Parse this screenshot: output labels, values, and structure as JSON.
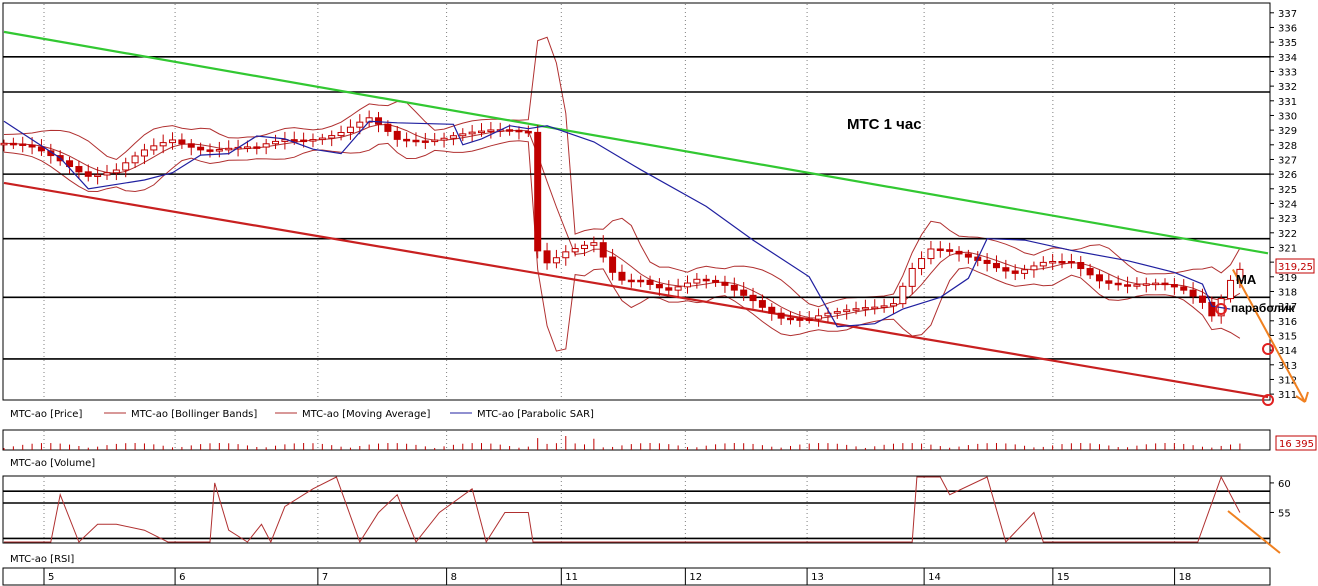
{
  "chart_data": [
    {
      "type": "candlestick",
      "panel": "price",
      "legend": [
        "MTC-ao [Price]",
        "MTC-ao [Bollinger Bands]",
        "MTC-ao [Moving Average]",
        "MTC-ao [Parabolic SAR]"
      ],
      "y_ticks": [
        311,
        312,
        313,
        314,
        315,
        316,
        317,
        318,
        319,
        320,
        321,
        322,
        323,
        324,
        325,
        326,
        327,
        328,
        329,
        330,
        331,
        332,
        333,
        334,
        335,
        336,
        337
      ],
      "ylim": [
        310.6,
        337.6
      ],
      "last_price_label": "319,25",
      "last_price": 319.25,
      "x_day_labels": [
        "5",
        "6",
        "7",
        "8",
        "11",
        "12",
        "13",
        "14",
        "15",
        "18"
      ],
      "horizontal_levels": [
        334,
        331.6,
        326,
        321.6,
        317.6,
        313.4
      ],
      "annotations": {
        "title": "МТС   1 час",
        "ma_label": "МА",
        "sar_label": "параболик"
      },
      "price_path": [
        [
          0,
          328.1
        ],
        [
          12,
          327.6
        ],
        [
          24,
          326.9
        ],
        [
          36,
          326.1
        ],
        [
          48,
          326.3
        ],
        [
          60,
          327.4
        ],
        [
          72,
          328.3
        ],
        [
          84,
          327.9
        ],
        [
          96,
          327.8
        ],
        [
          108,
          327.6
        ],
        [
          120,
          328.3
        ],
        [
          132,
          328.6
        ],
        [
          144,
          328.9
        ],
        [
          156,
          329.6
        ],
        [
          168,
          328.3
        ],
        [
          180,
          328.5
        ],
        [
          192,
          328.7
        ],
        [
          204,
          328.7
        ],
        [
          216,
          328.9
        ],
        [
          224,
          329.0
        ],
        [
          228,
          321.0
        ],
        [
          232,
          320.2
        ],
        [
          240,
          320.8
        ],
        [
          252,
          321.1
        ],
        [
          262,
          318.6
        ],
        [
          272,
          318.9
        ],
        [
          284,
          318.3
        ],
        [
          296,
          318.7
        ],
        [
          308,
          318.2
        ],
        [
          320,
          317.5
        ],
        [
          332,
          316.4
        ],
        [
          344,
          316.0
        ],
        [
          356,
          316.4
        ],
        [
          368,
          317.0
        ],
        [
          380,
          317.4
        ],
        [
          388,
          319.6
        ],
        [
          396,
          320.7
        ],
        [
          408,
          320.4
        ],
        [
          420,
          320.1
        ],
        [
          432,
          319.4
        ],
        [
          444,
          319.8
        ],
        [
          456,
          319.8
        ],
        [
          468,
          318.9
        ],
        [
          480,
          318.6
        ],
        [
          492,
          318.4
        ],
        [
          504,
          317.9
        ],
        [
          512,
          317.3
        ],
        [
          516,
          316.5
        ],
        [
          524,
          319.0
        ],
        [
          528,
          319.7
        ]
      ],
      "parabolic_sar": [
        [
          0,
          329.6
        ],
        [
          24,
          327.1
        ],
        [
          36,
          325.0
        ],
        [
          60,
          325.6
        ],
        [
          72,
          326.1
        ],
        [
          84,
          327.3
        ],
        [
          96,
          327.4
        ],
        [
          108,
          328.6
        ],
        [
          120,
          328.4
        ],
        [
          132,
          327.7
        ],
        [
          144,
          327.4
        ],
        [
          156,
          329.6
        ],
        [
          168,
          329.5
        ],
        [
          192,
          329.4
        ],
        [
          196,
          328.0
        ],
        [
          204,
          328.4
        ],
        [
          216,
          329.3
        ],
        [
          224,
          329.1
        ],
        [
          232,
          329.3
        ],
        [
          252,
          328.2
        ],
        [
          272,
          326.3
        ],
        [
          300,
          323.8
        ],
        [
          320,
          321.5
        ],
        [
          344,
          319.0
        ],
        [
          356,
          315.6
        ],
        [
          372,
          315.8
        ],
        [
          384,
          316.8
        ],
        [
          400,
          317.6
        ],
        [
          412,
          318.9
        ],
        [
          420,
          321.6
        ],
        [
          436,
          321.5
        ],
        [
          456,
          320.8
        ],
        [
          480,
          320.1
        ],
        [
          500,
          319.3
        ],
        [
          512,
          318.5
        ],
        [
          516,
          317.0
        ],
        [
          524,
          316.8
        ]
      ],
      "trend_lines": [
        {
          "name": "resistance",
          "color": "#32c832",
          "from": [
            0,
            335.7
          ],
          "to": [
            540,
            320.6
          ]
        },
        {
          "name": "support",
          "color": "#c82020",
          "from": [
            0,
            325.4
          ],
          "to": [
            540,
            310.8
          ]
        }
      ]
    },
    {
      "type": "bar",
      "panel": "volume",
      "legend": [
        "MTC-ao [Volume]"
      ],
      "last_value_label": "16 395"
    },
    {
      "type": "line",
      "panel": "rsi",
      "legend": [
        "MTC-ao [RSI]"
      ],
      "y_ticks": [
        55,
        60
      ],
      "ylim": [
        50,
        61
      ],
      "levels": [
        58.6,
        56.6,
        50.6
      ],
      "values": [
        [
          0,
          50
        ],
        [
          20,
          50
        ],
        [
          24,
          58
        ],
        [
          32,
          50
        ],
        [
          40,
          53
        ],
        [
          48,
          53
        ],
        [
          60,
          52
        ],
        [
          70,
          50
        ],
        [
          88,
          50
        ],
        [
          90,
          60
        ],
        [
          96,
          52
        ],
        [
          104,
          50
        ],
        [
          110,
          53
        ],
        [
          114,
          50
        ],
        [
          120,
          56
        ],
        [
          132,
          59
        ],
        [
          142,
          61
        ],
        [
          152,
          50
        ],
        [
          160,
          55
        ],
        [
          168,
          58
        ],
        [
          176,
          50
        ],
        [
          186,
          55
        ],
        [
          200,
          59
        ],
        [
          206,
          50
        ],
        [
          214,
          55
        ],
        [
          224,
          55
        ],
        [
          226,
          50
        ],
        [
          388,
          50
        ],
        [
          390,
          61
        ],
        [
          400,
          61
        ],
        [
          404,
          58
        ],
        [
          420,
          61
        ],
        [
          428,
          50
        ],
        [
          440,
          55
        ],
        [
          444,
          50
        ],
        [
          456,
          50
        ],
        [
          510,
          50
        ],
        [
          520,
          61
        ],
        [
          528,
          55
        ]
      ]
    }
  ]
}
